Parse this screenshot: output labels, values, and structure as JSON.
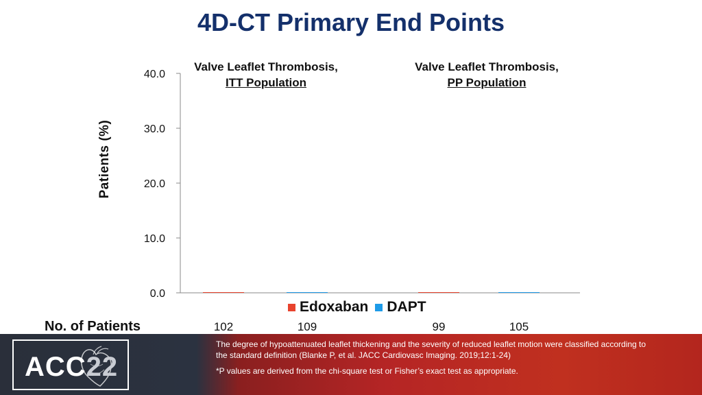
{
  "title": "4D-CT Primary End Points",
  "panels": [
    {
      "line1": "Valve Leaflet Thrombosis,",
      "line2": "ITT Population"
    },
    {
      "line1": "Valve Leaflet Thrombosis,",
      "line2": "PP Population"
    }
  ],
  "colors": {
    "title": "#14306b",
    "edoxaban": "#e8432e",
    "dapt": "#1e9be8"
  },
  "chart_data": {
    "type": "bar",
    "ylabel": "Patients (%)",
    "ylim": [
      0,
      40
    ],
    "yticks": [
      "0.0",
      "10.0",
      "20.0",
      "30.0",
      "40.0"
    ],
    "series": [
      {
        "name": "Edoxaban",
        "values": [
          0,
          0
        ]
      },
      {
        "name": "DAPT",
        "values": [
          0,
          0
        ]
      }
    ],
    "legend": "bottom"
  },
  "patients": {
    "label": "No. of Patients",
    "values": [
      "102",
      "109",
      "99",
      "105"
    ]
  },
  "footer": {
    "logo_text": "ACC",
    "logo_number": "22",
    "note1": "The degree of hypoattenuated leaflet thickening and the severity of reduced leaflet motion were classified according to the standard definition (Blanke P, et al. JACC Cardiovasc Imaging. 2019;12:1-24)",
    "note2": "*P values are derived from the chi-square test or Fisher’s exact test as appropriate."
  }
}
